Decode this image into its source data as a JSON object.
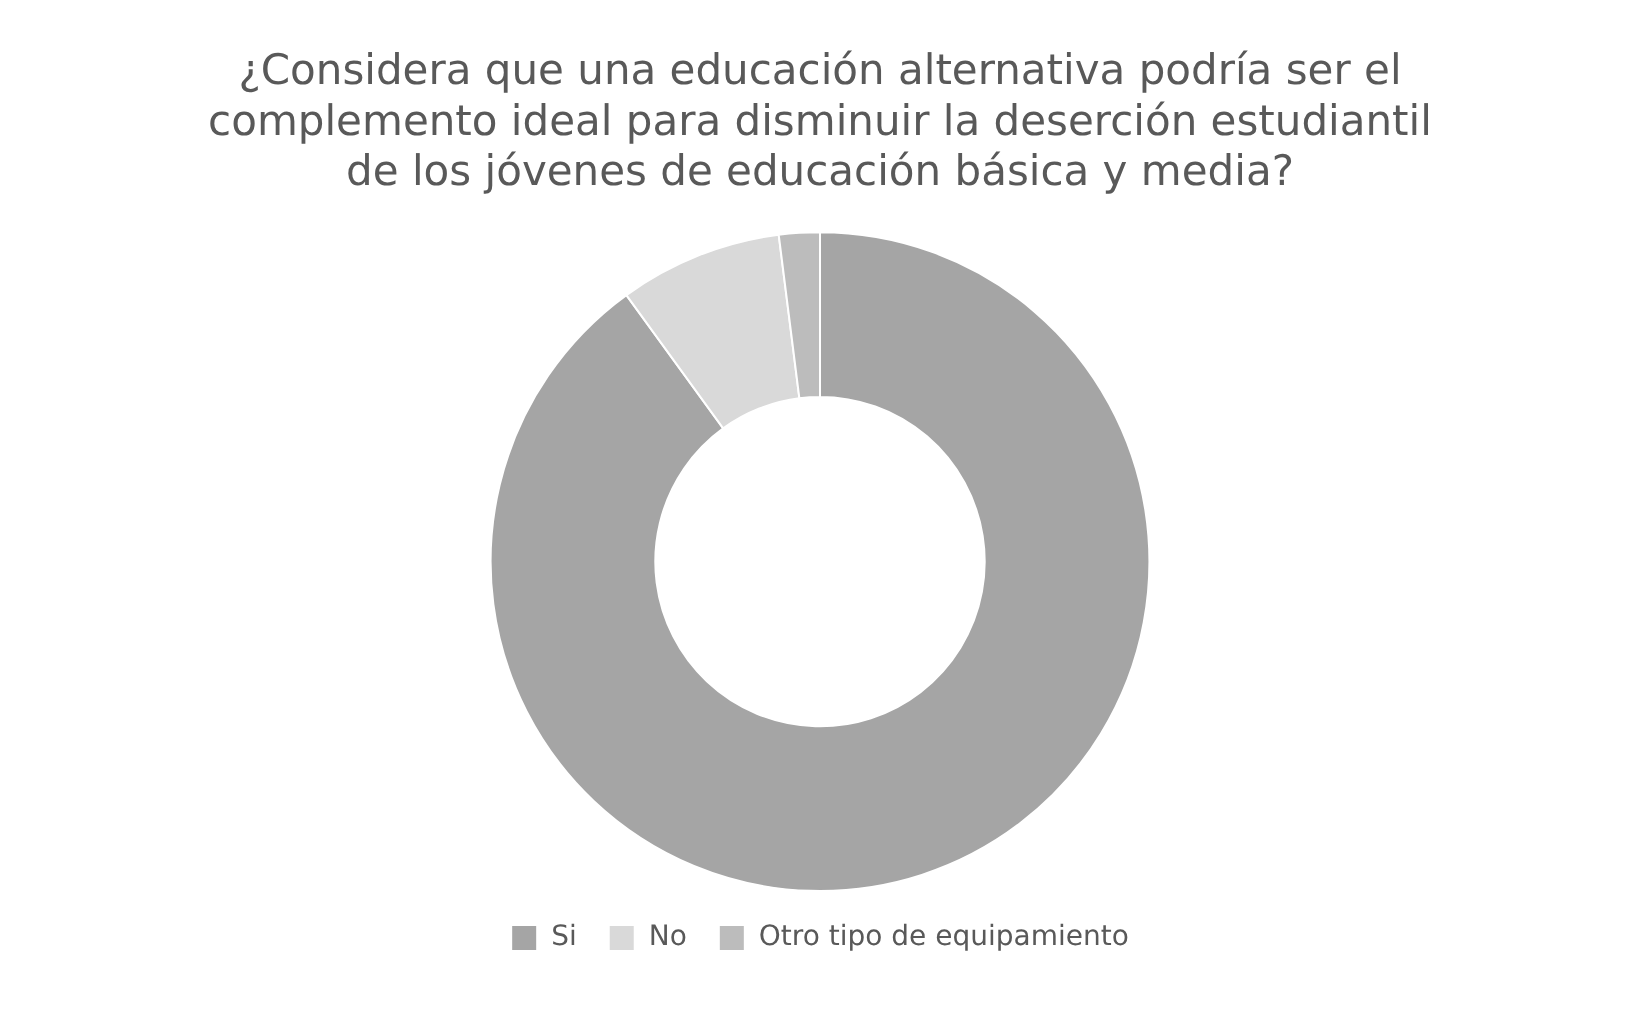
{
  "chart_data": {
    "type": "donut",
    "title": [
      "¿Considera que una educación alternativa podría ser el",
      "complemento ideal para disminuir la deserción estudiantil",
      "de los jóvenes de educación básica y media?"
    ],
    "categories": [
      "Si",
      "No",
      "Otro tipo de equipamiento"
    ],
    "values": [
      90,
      8,
      2
    ],
    "colors": [
      "#a5a5a5",
      "#d9d9d9",
      "#bcbcbc"
    ],
    "legend": "bottom"
  }
}
